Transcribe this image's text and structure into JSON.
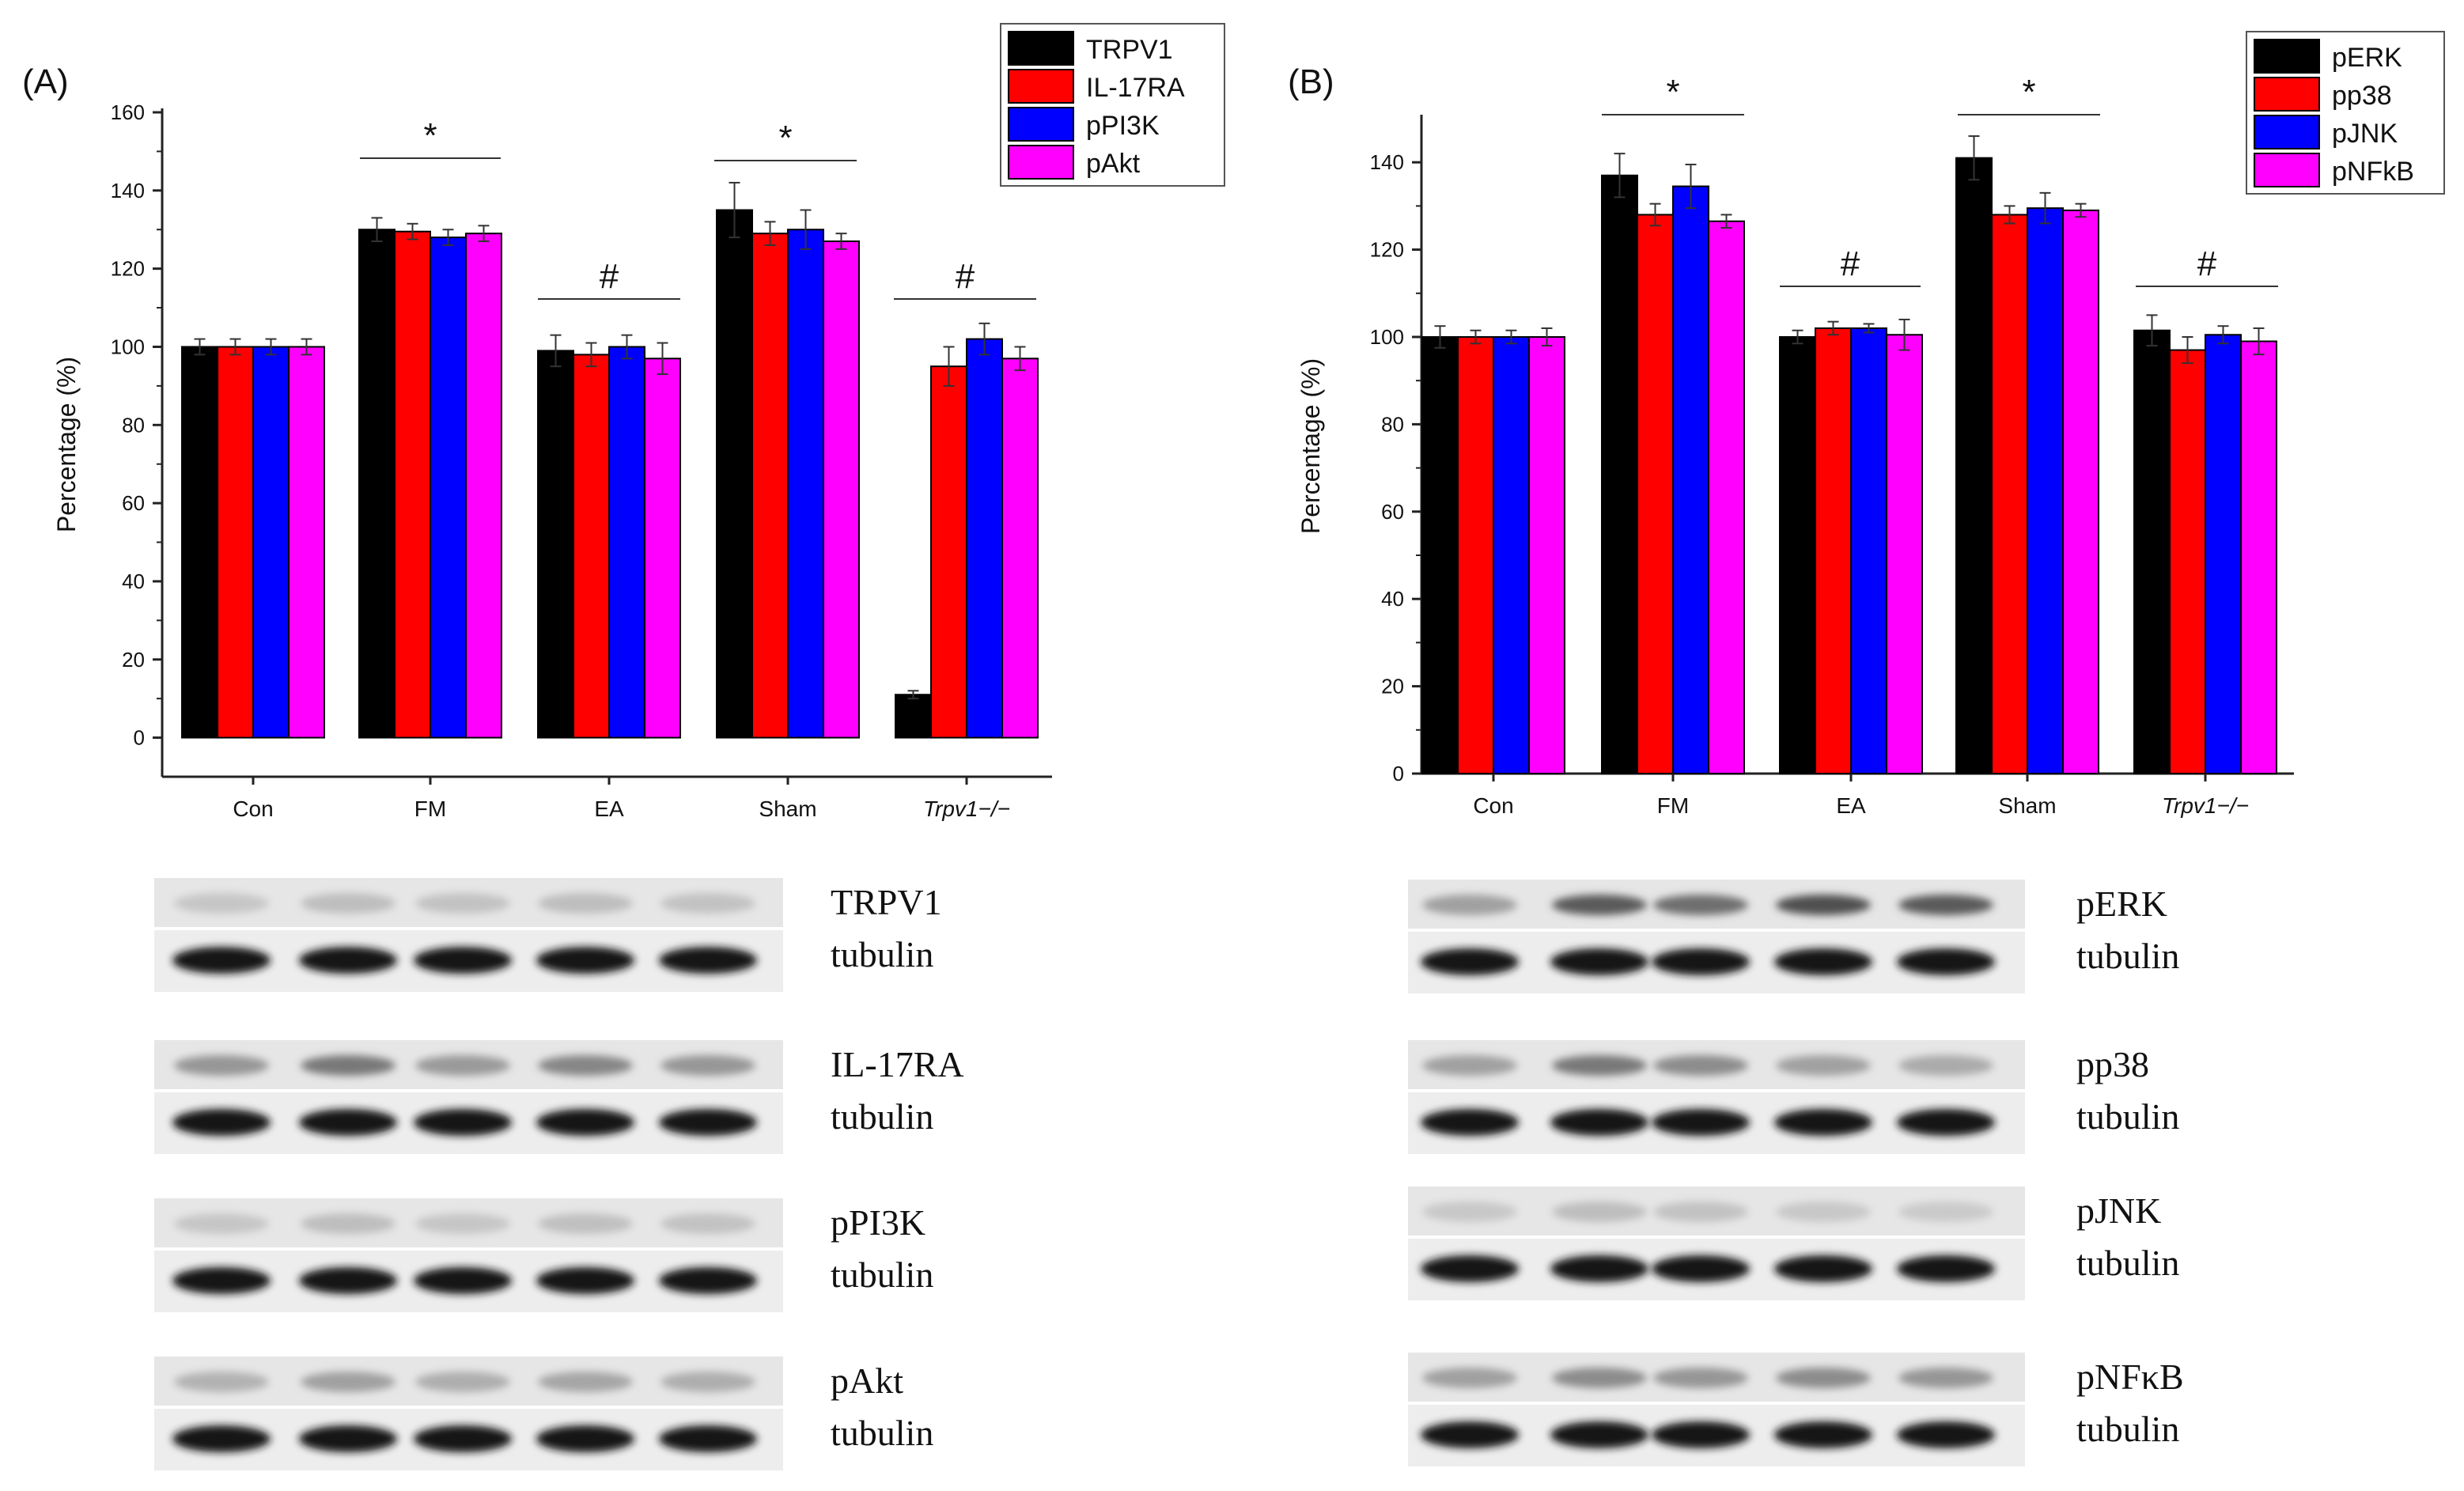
{
  "chart_data": [
    {
      "panel": "(A)",
      "type": "bar",
      "ylabel": "Percentage (%)",
      "xlabel": "",
      "ylim": [
        -10,
        160
      ],
      "yticks": [
        0,
        20,
        40,
        60,
        80,
        100,
        120,
        140,
        160
      ],
      "categories": [
        "Con",
        "FM",
        "EA",
        "Sham",
        "Trpv1−/−"
      ],
      "italic_categories": [
        "Trpv1−/−"
      ],
      "series": [
        {
          "name": "TRPV1",
          "color": "#000000",
          "values": [
            100,
            130,
            99,
            135,
            11
          ],
          "errors": [
            2,
            3,
            4,
            7,
            1
          ]
        },
        {
          "name": "IL-17RA",
          "color": "#ff0000",
          "values": [
            100,
            129.5,
            98,
            129,
            95
          ],
          "errors": [
            2,
            2,
            3,
            3,
            5
          ]
        },
        {
          "name": "pPI3K",
          "color": "#0000ff",
          "values": [
            100,
            128,
            100,
            130,
            102
          ],
          "errors": [
            2,
            2,
            3,
            5,
            4
          ]
        },
        {
          "name": "pAkt",
          "color": "#ff00ff",
          "values": [
            100,
            129,
            97,
            127,
            97
          ],
          "errors": [
            2,
            2,
            4,
            2,
            3
          ]
        }
      ],
      "annotations": [
        {
          "category": "FM",
          "symbol": "*"
        },
        {
          "category": "EA",
          "symbol": "#"
        },
        {
          "category": "Sham",
          "symbol": "*"
        },
        {
          "category": "Trpv1−/−",
          "symbol": "#"
        }
      ],
      "legend_position": "top-right",
      "grid": false,
      "blots": [
        {
          "target": "TRPV1",
          "loading": "tubulin"
        },
        {
          "target": "IL-17RA",
          "loading": "tubulin"
        },
        {
          "target": "pPI3K",
          "loading": "tubulin"
        },
        {
          "target": "pAkt",
          "loading": "tubulin"
        }
      ],
      "blot_intensity": [
        [
          0.16,
          0.2,
          0.18,
          0.2,
          0.18
        ],
        [
          0.4,
          0.55,
          0.38,
          0.48,
          0.4
        ],
        [
          0.16,
          0.2,
          0.16,
          0.19,
          0.18
        ],
        [
          0.26,
          0.35,
          0.28,
          0.32,
          0.28
        ]
      ]
    },
    {
      "panel": "(B)",
      "type": "bar",
      "ylabel": "Percentage (%)",
      "xlabel": "",
      "ylim": [
        0,
        150
      ],
      "yticks": [
        0,
        20,
        40,
        60,
        80,
        100,
        120,
        140
      ],
      "categories": [
        "Con",
        "FM",
        "EA",
        "Sham",
        "Trpv1−/−"
      ],
      "italic_categories": [
        "Trpv1−/−"
      ],
      "series": [
        {
          "name": "pERK",
          "color": "#000000",
          "values": [
            100,
            137,
            100,
            141,
            101.5
          ],
          "errors": [
            2.5,
            5,
            1.5,
            5,
            3.5
          ]
        },
        {
          "name": "pp38",
          "color": "#ff0000",
          "values": [
            100,
            128,
            102,
            128,
            97
          ],
          "errors": [
            1.5,
            2.5,
            1.5,
            2,
            3
          ]
        },
        {
          "name": "pJNK",
          "color": "#0000ff",
          "values": [
            100,
            134.5,
            102,
            129.5,
            100.5
          ],
          "errors": [
            1.5,
            5,
            1,
            3.5,
            2
          ]
        },
        {
          "name": "pNFkB",
          "color": "#ff00ff",
          "values": [
            100,
            126.5,
            100.5,
            129,
            99
          ],
          "errors": [
            2,
            1.5,
            3.5,
            1.5,
            3
          ]
        }
      ],
      "annotations": [
        {
          "category": "FM",
          "symbol": "*"
        },
        {
          "category": "EA",
          "symbol": "#"
        },
        {
          "category": "Sham",
          "symbol": "*"
        },
        {
          "category": "Trpv1−/−",
          "symbol": "#"
        }
      ],
      "legend_position": "top-right",
      "grid": false,
      "blots": [
        {
          "target": "pERK",
          "loading": "tubulin"
        },
        {
          "target": "pp38",
          "loading": "tubulin"
        },
        {
          "target": "pJNK",
          "loading": "tubulin"
        },
        {
          "target": "pNFκB",
          "loading": "tubulin"
        }
      ],
      "blot_intensity": [
        [
          0.35,
          0.7,
          0.6,
          0.75,
          0.7
        ],
        [
          0.35,
          0.55,
          0.45,
          0.35,
          0.3
        ],
        [
          0.15,
          0.2,
          0.18,
          0.15,
          0.14
        ],
        [
          0.35,
          0.45,
          0.4,
          0.45,
          0.4
        ]
      ]
    }
  ]
}
